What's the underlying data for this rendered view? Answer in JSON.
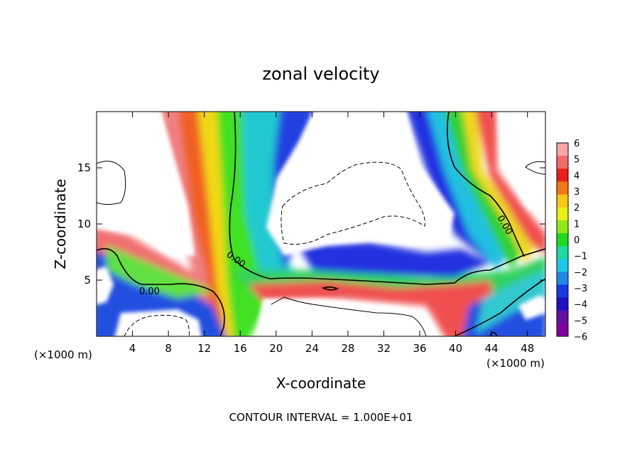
{
  "chart_data": {
    "type": "heatmap",
    "title": "zonal velocity",
    "xlabel": "X-coordinate",
    "ylabel": "Z-coordinate",
    "x_unit_left": "(×1000 m)",
    "x_unit_right": "(×1000 m)",
    "footer": "CONTOUR INTERVAL = 1.000E+01",
    "xlim": [
      0,
      50
    ],
    "ylim": [
      0,
      20
    ],
    "x_ticks": [
      4,
      8,
      12,
      16,
      20,
      24,
      28,
      32,
      36,
      40,
      44,
      48
    ],
    "y_ticks": [
      5,
      10,
      15
    ],
    "grid": false,
    "contour_label": "0.00",
    "colorbar": {
      "range": [
        -6,
        6
      ],
      "ticks": [
        "6",
        "5",
        "4",
        "3",
        "2",
        "1",
        "0",
        "−1",
        "−2",
        "−3",
        "−4",
        "−5",
        "−6"
      ],
      "colors": [
        "#f7a6a6",
        "#f06a6a",
        "#e8201c",
        "#f07818",
        "#f8c818",
        "#e8f018",
        "#90e818",
        "#20d820",
        "#20d8a0",
        "#20c8e8",
        "#2088e8",
        "#1838e0",
        "#2010c0",
        "#6010a0",
        "#800098"
      ]
    }
  }
}
